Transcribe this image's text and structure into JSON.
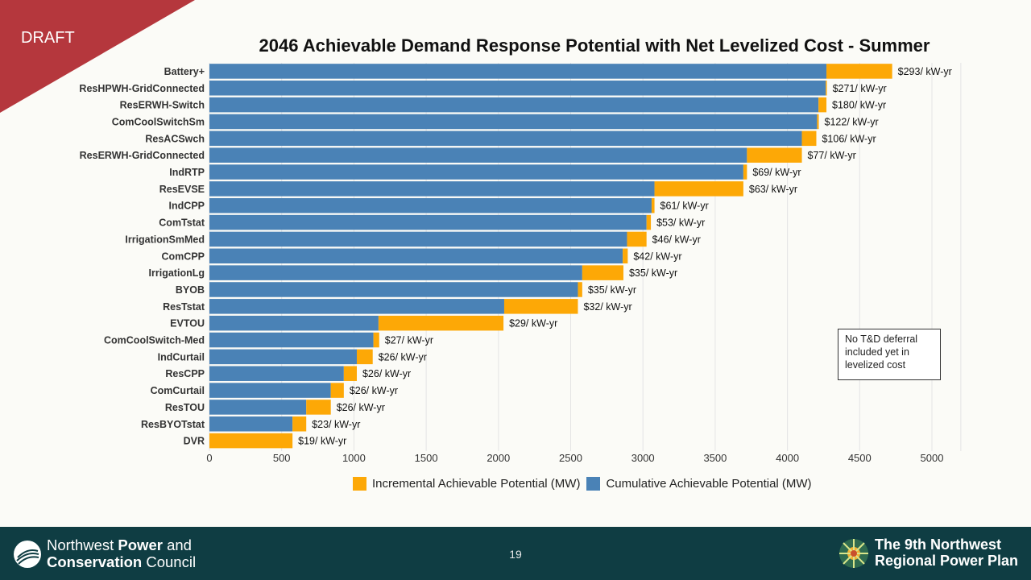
{
  "draft_label": "DRAFT",
  "page_number": "19",
  "note": "No T&D deferral included yet in levelized cost",
  "footer": {
    "org_line1_a": "Northwest ",
    "org_line1_b": "Power",
    "org_line1_c": " and",
    "org_line2_a": "Conservation",
    "org_line2_b": " Council",
    "plan_line1": "The 9th Northwest",
    "plan_line2": "Regional Power Plan"
  },
  "colors": {
    "cumulative": "#4a82b6",
    "incremental": "#fda806",
    "banner": "#b5373d",
    "footer": "#0f3d43"
  },
  "chart_data": {
    "type": "bar",
    "orientation": "horizontal",
    "stacked": true,
    "title": "2046 Achievable Demand Response Potential with Net Levelized Cost - Summer",
    "xlim": [
      0,
      5000
    ],
    "xticks": [
      0,
      500,
      1000,
      1500,
      2000,
      2500,
      3000,
      3500,
      4000,
      4500,
      5000
    ],
    "grid": true,
    "legend_position": "bottom",
    "categories": [
      "Battery+",
      "ResHPWH-GridConnected",
      "ResERWH-Switch",
      "ComCoolSwitchSm",
      "ResACSwch",
      "ResERWH-GridConnected",
      "IndRTP",
      "ResEVSE",
      "IndCPP",
      "ComTstat",
      "IrrigationSmMed",
      "ComCPP",
      "IrrigationLg",
      "BYOB",
      "ResTstat",
      "EVTOU",
      "ComCoolSwitch-Med",
      "IndCurtail",
      "ResCPP",
      "ComCurtail",
      "ResTOU",
      "ResBYOTstat",
      "DVR"
    ],
    "series": [
      {
        "name": "Cumulative Achievable Potential (MW)",
        "color": "#4a82b6",
        "values": [
          4270,
          4265,
          4215,
          4205,
          4100,
          3720,
          3695,
          3080,
          3060,
          3025,
          2890,
          2860,
          2580,
          2550,
          2040,
          1170,
          1135,
          1020,
          930,
          840,
          670,
          575,
          0
        ]
      },
      {
        "name": "Incremental Achievable Potential (MW)",
        "color": "#fda806",
        "values": [
          455,
          8,
          55,
          12,
          100,
          380,
          25,
          615,
          20,
          30,
          135,
          35,
          285,
          30,
          510,
          865,
          40,
          110,
          90,
          90,
          170,
          95,
          575
        ]
      }
    ],
    "data_labels": [
      "$293/ kW-yr",
      "$271/ kW-yr",
      "$180/ kW-yr",
      "$122/ kW-yr",
      "$106/ kW-yr",
      "$77/ kW-yr",
      "$69/ kW-yr",
      "$63/ kW-yr",
      "$61/ kW-yr",
      "$53/ kW-yr",
      "$46/ kW-yr",
      "$42/ kW-yr",
      "$35/ kW-yr",
      "$35/ kW-yr",
      "$32/ kW-yr",
      "$29/ kW-yr",
      "$27/ kW-yr",
      "$26/ kW-yr",
      "$26/ kW-yr",
      "$26/ kW-yr",
      "$26/ kW-yr",
      "$23/ kW-yr",
      "$19/ kW-yr"
    ],
    "legend": [
      "Incremental Achievable Potential (MW)",
      "Cumulative Achievable Potential (MW)"
    ]
  }
}
